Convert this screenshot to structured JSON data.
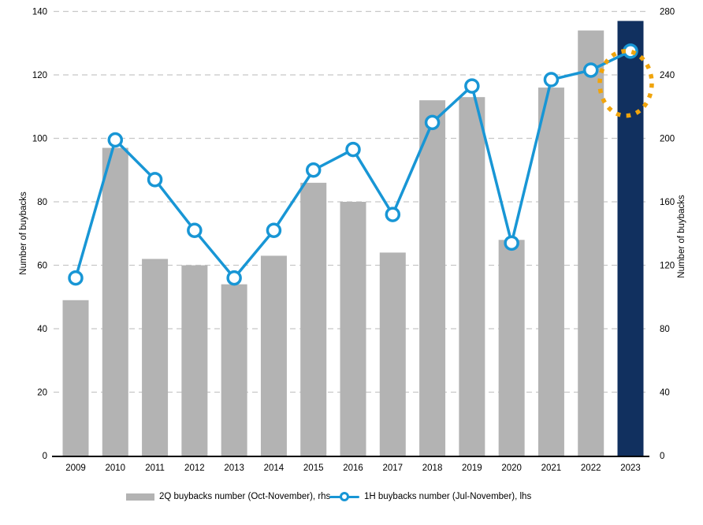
{
  "chart_data": {
    "type": "combo",
    "categories": [
      "2009",
      "2010",
      "2011",
      "2012",
      "2013",
      "2014",
      "2015",
      "2016",
      "2017",
      "2018",
      "2019",
      "2020",
      "2021",
      "2022",
      "2023"
    ],
    "series": [
      {
        "name": "2Q buybacks number (Oct-November), rhs",
        "type": "bar",
        "axis": "right",
        "values": [
          98,
          194,
          124,
          120,
          108,
          126,
          172,
          160,
          128,
          224,
          226,
          136,
          232,
          268,
          274
        ],
        "color": "#b3b3b3",
        "highlight_index": 14,
        "highlight_color": "#11305f"
      },
      {
        "name": "1H buybacks number (Jul-November), lhs",
        "type": "line",
        "axis": "left",
        "values": [
          56,
          99.5,
          87,
          71,
          56,
          71,
          90,
          96.5,
          76,
          105,
          116.5,
          67,
          118.5,
          121.5,
          127.5
        ],
        "color": "#1896d5",
        "marker": "open-circle"
      }
    ],
    "left_axis": {
      "label": "Number of buybacks",
      "min": 0,
      "max": 140,
      "step": 20
    },
    "right_axis": {
      "label": "Number of buybacks",
      "min": 0,
      "max": 280,
      "step": 40
    },
    "gridlines": {
      "orientation": "horizontal",
      "style": "dashed",
      "color": "#c8c8c8"
    },
    "legend_position": "bottom",
    "annotation": {
      "shape": "dotted-ellipse",
      "color": "#f0a40c",
      "target_category": "2023",
      "target_series": "line"
    }
  }
}
